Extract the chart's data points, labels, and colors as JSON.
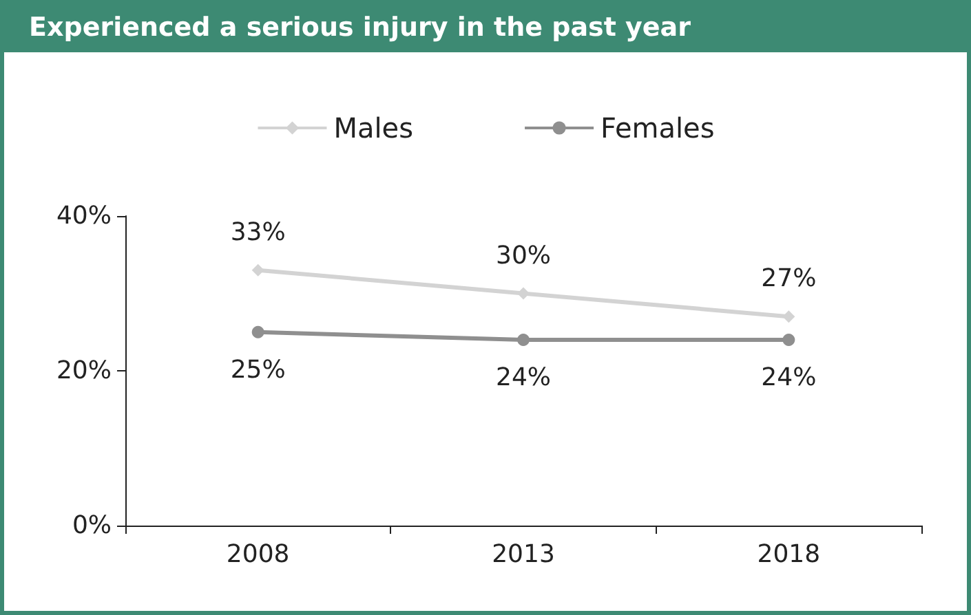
{
  "chart_data": {
    "type": "line",
    "title": "Experienced a serious injury in the past year",
    "categories": [
      "2008",
      "2013",
      "2018"
    ],
    "series": [
      {
        "name": "Males",
        "color": "#d3d3d3",
        "marker": "diamond",
        "values": [
          33,
          30,
          27
        ],
        "value_labels": [
          "33%",
          "30%",
          "27%"
        ]
      },
      {
        "name": "Females",
        "color": "#8f8f8f",
        "marker": "circle",
        "values": [
          25,
          24,
          24
        ],
        "value_labels": [
          "25%",
          "24%",
          "24%"
        ]
      }
    ],
    "ylim": [
      0,
      40
    ],
    "yticks": [
      {
        "value": 0,
        "label": "0%"
      },
      {
        "value": 20,
        "label": "20%"
      },
      {
        "value": 40,
        "label": "40%"
      }
    ],
    "grid": false,
    "legend": "top"
  }
}
